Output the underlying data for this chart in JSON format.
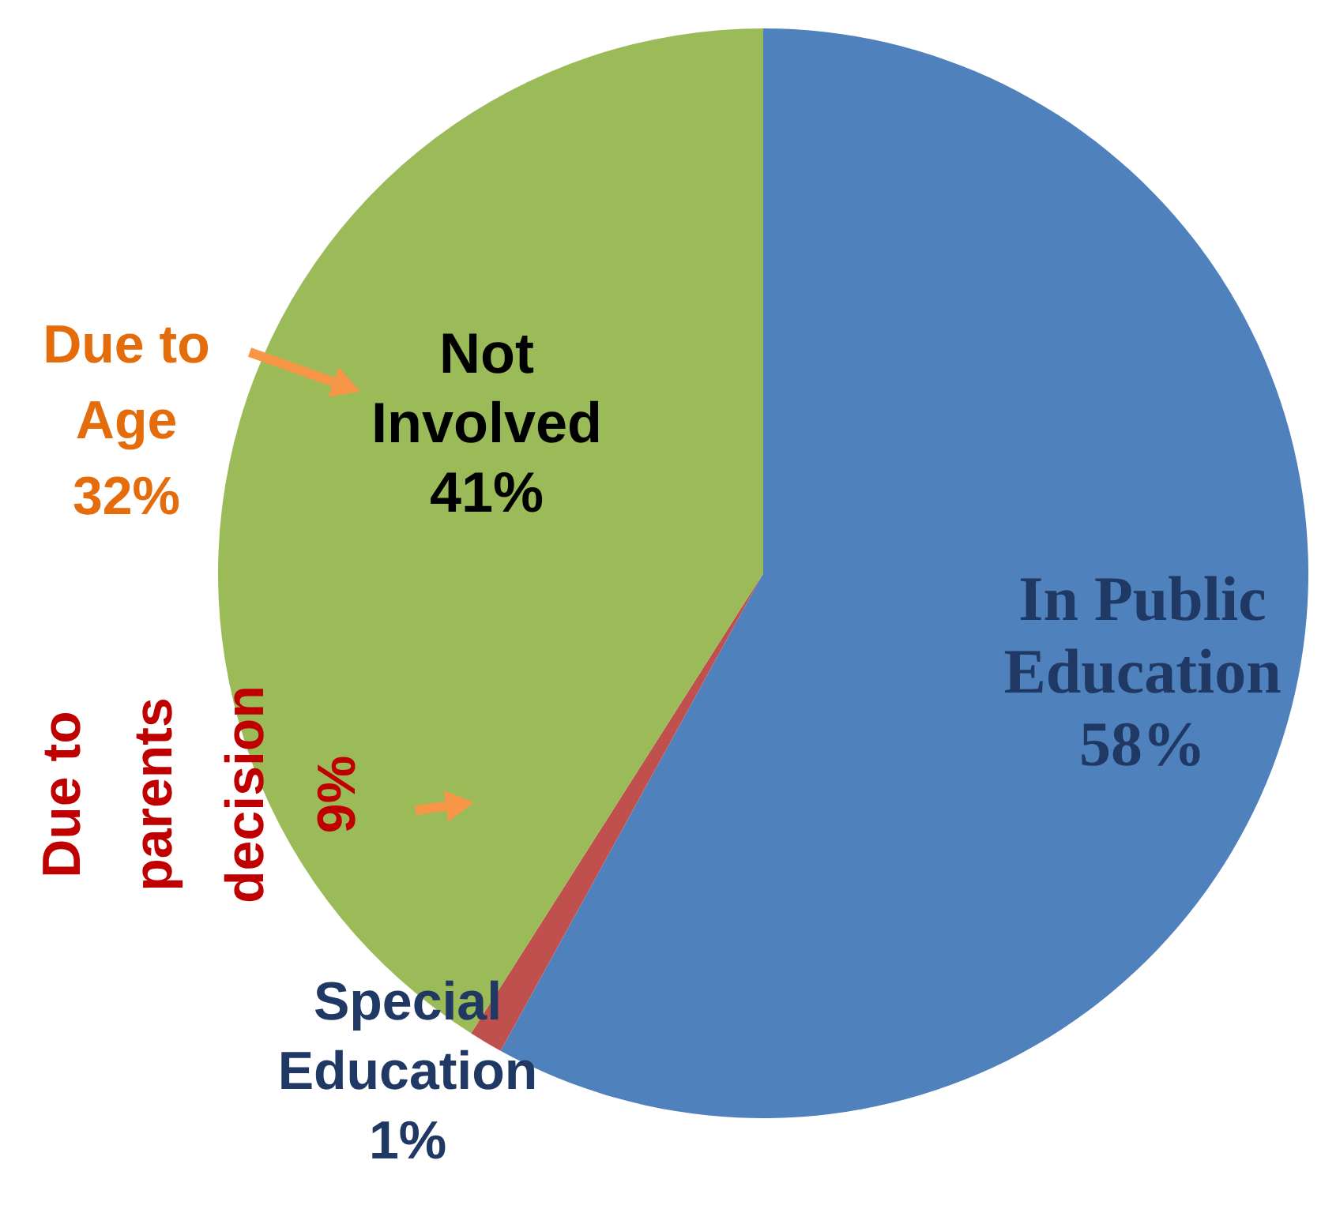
{
  "chart_data": {
    "type": "pie",
    "categories": [
      "In Public Education",
      "Special Education",
      "Not Involved"
    ],
    "values": [
      58,
      1,
      41
    ],
    "colors": [
      "#4f81bd",
      "#c0504d",
      "#9bbb59"
    ],
    "value_labels": [
      "58%",
      "1%",
      "41%"
    ],
    "legend": false,
    "annotations": [
      "Due to Age 32%",
      "Due to parents decision 9%"
    ]
  }
}
